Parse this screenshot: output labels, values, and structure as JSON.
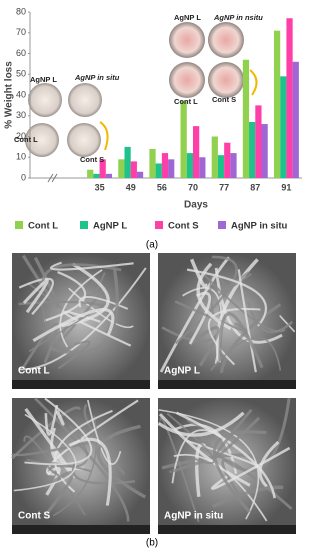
{
  "chart_data": {
    "type": "bar",
    "y_label": "% Weight loss",
    "x_label": "Days",
    "categories": [
      "35",
      "49",
      "56",
      "70",
      "77",
      "87",
      "91"
    ],
    "series": [
      {
        "name": "Cont L",
        "color": "#92d050",
        "values": [
          4,
          9,
          14,
          37,
          20,
          57,
          71
        ]
      },
      {
        "name": "AgNP L",
        "color": "#1fc28a",
        "values": [
          2,
          15,
          7,
          12,
          11,
          27,
          49
        ]
      },
      {
        "name": "Cont S",
        "color": "#ff3fa8",
        "values": [
          9,
          8,
          12,
          25,
          17,
          35,
          77
        ]
      },
      {
        "name": "AgNP in situ",
        "color": "#a066d3",
        "values": [
          2,
          3,
          9,
          10,
          12,
          26,
          56
        ]
      }
    ],
    "ylim": [
      0,
      80
    ],
    "yticks": [
      0,
      10,
      20,
      30,
      40,
      50,
      60,
      70,
      80
    ],
    "grid": false,
    "annotations": [
      "AgNP L",
      "AgNP in situ",
      "Cont L",
      "Cont S",
      "AgNP L",
      "AgNP in nsitu",
      "Cont L",
      "Cont S"
    ]
  },
  "figure": {
    "panel_a": "(a)",
    "panel_b": "(b)",
    "sem_labels": [
      "Cont L",
      "AgNP L",
      "Cont S",
      "AgNP in situ"
    ]
  }
}
